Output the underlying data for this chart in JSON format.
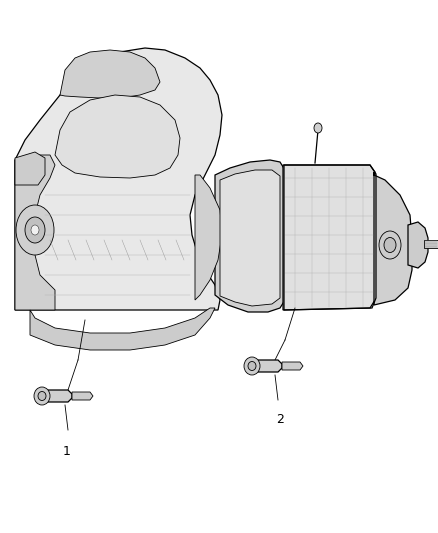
{
  "bg_color": "#ffffff",
  "fig_width": 4.38,
  "fig_height": 5.33,
  "dpi": 100,
  "line_color": "#000000",
  "gray1": "#f0f0f0",
  "gray2": "#e0e0e0",
  "gray3": "#cccccc",
  "gray4": "#b0b0b0",
  "gray5": "#909090",
  "label1": "1",
  "label2": "2",
  "engine_color": "#e8e8e8",
  "trans_color": "#e4e4e4",
  "detail_color": "#d0d0d0",
  "shadow_color": "#c0c0c0"
}
